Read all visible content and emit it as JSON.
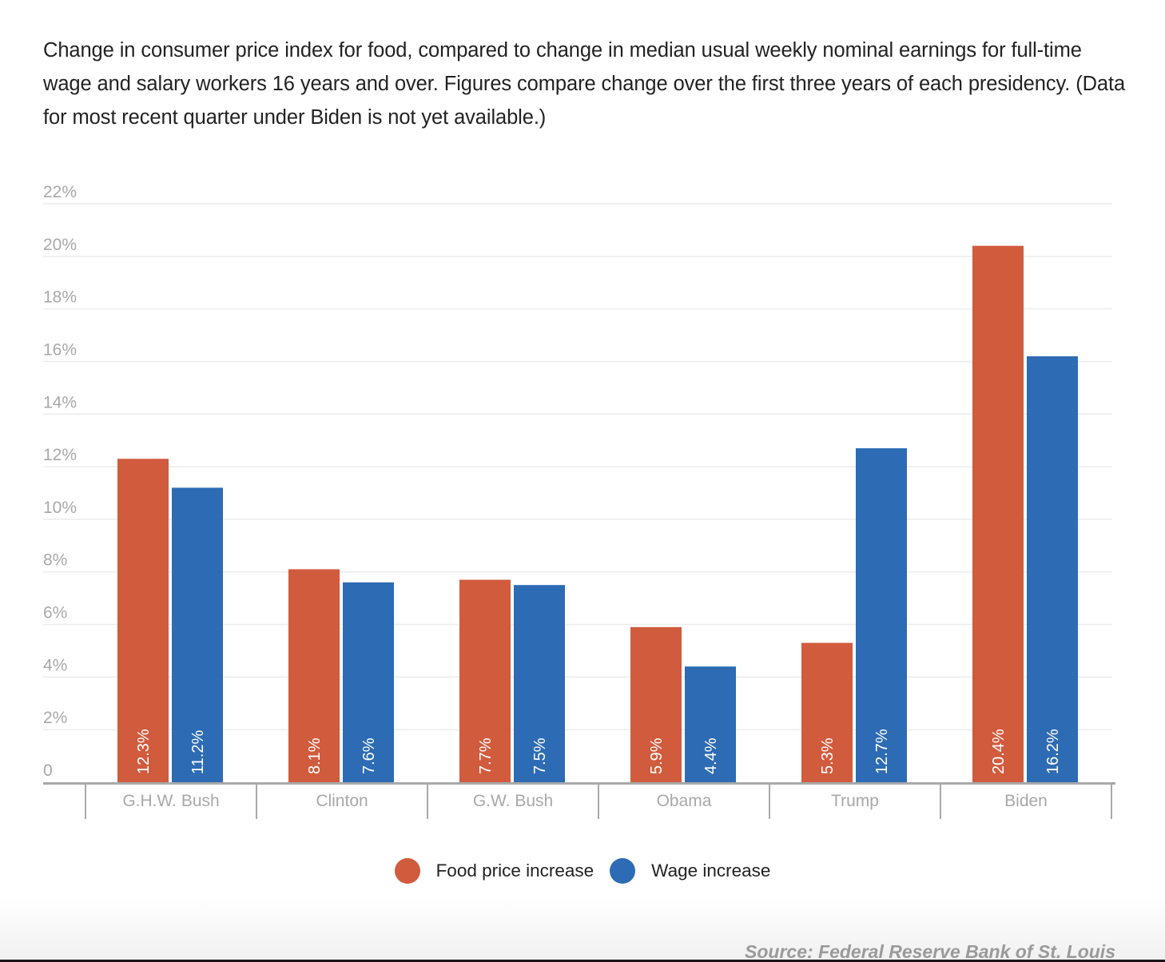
{
  "description": "Change in consumer price index for food, compared to change in median usual weekly nominal earnings for full-time wage and salary workers 16 years and over. Figures compare change over the first three years of each presidency. (Data for most recent quarter under Biden is not yet available.)",
  "source": "Source: Federal Reserve Bank of St. Louis",
  "colors": {
    "food": "#d15b3d",
    "wage": "#2d6bb4"
  },
  "chart_data": {
    "type": "bar",
    "title": "",
    "xlabel": "",
    "ylabel": "",
    "categories": [
      "G.H.W. Bush",
      "Clinton",
      "G.W. Bush",
      "Obama",
      "Trump",
      "Biden"
    ],
    "series": [
      {
        "name": "Food price increase",
        "color": "#d15b3d",
        "values": [
          12.3,
          8.1,
          7.7,
          5.9,
          5.3,
          20.4
        ],
        "labels": [
          "12.3%",
          "8.1%",
          "7.7%",
          "5.9%",
          "5.3%",
          "20.4%"
        ]
      },
      {
        "name": "Wage increase",
        "color": "#2d6bb4",
        "values": [
          11.2,
          7.6,
          7.5,
          4.4,
          12.7,
          16.2
        ],
        "labels": [
          "11.2%",
          "7.6%",
          "7.5%",
          "4.4%",
          "12.7%",
          "16.2%"
        ]
      }
    ],
    "ylim": [
      0,
      22
    ],
    "yticks": [
      0,
      2,
      4,
      6,
      8,
      10,
      12,
      14,
      16,
      18,
      20,
      22
    ],
    "ytick_labels": [
      "0",
      "2%",
      "4%",
      "6%",
      "8%",
      "10%",
      "12%",
      "14%",
      "16%",
      "18%",
      "20%",
      "22%"
    ],
    "grid": true,
    "legend_position": "bottom-center",
    "data_labels": "inside-base-rotated"
  },
  "legend": [
    {
      "label": "Food price increase",
      "icon": "circle-swatch-icon"
    },
    {
      "label": "Wage increase",
      "icon": "circle-swatch-icon"
    }
  ]
}
